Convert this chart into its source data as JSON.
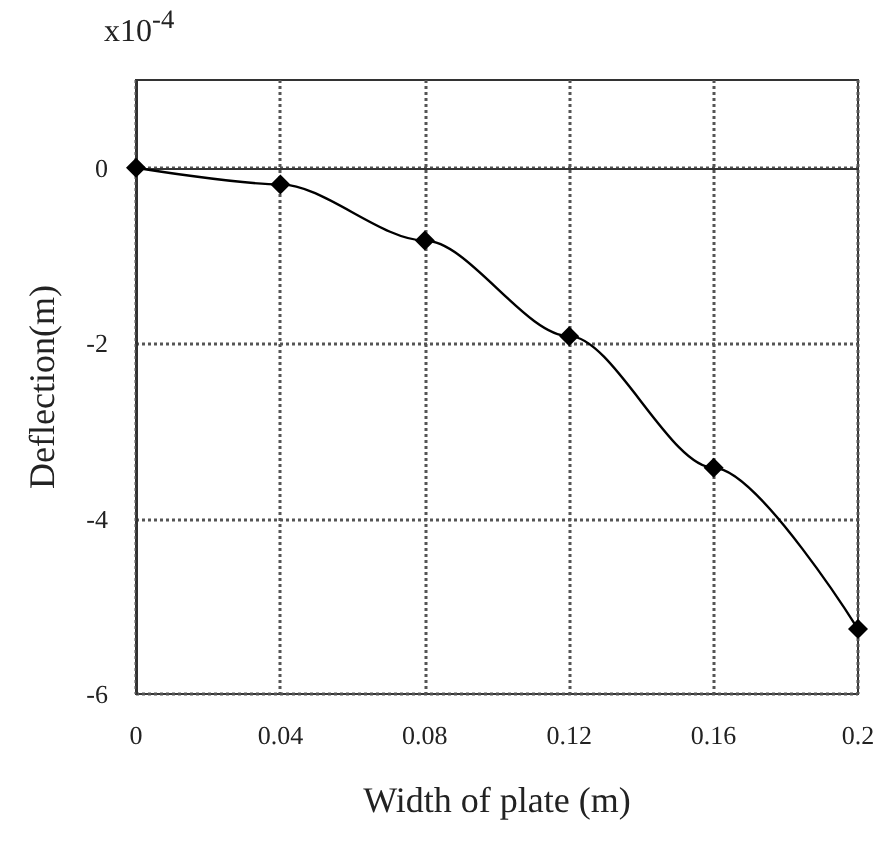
{
  "chart_data": {
    "type": "line",
    "xlabel": "Width of plate (m)",
    "ylabel": "Deflection(m)",
    "annotations": [
      "x10$^{-4}$"
    ],
    "x": [
      0,
      0.04,
      0.08,
      0.12,
      0.16,
      0.2
    ],
    "series": [
      {
        "color": "#000000",
        "values": [
          0,
          -0.19,
          -0.83,
          -1.92,
          -3.42,
          -5.26
        ]
      }
    ],
    "xlim": [
      0,
      0.2
    ],
    "xticks": [
      0,
      0.04,
      0.08,
      0.12,
      0.16,
      0.2
    ],
    "ylim": [
      -6,
      1
    ],
    "yticks": [
      -6,
      -4,
      -2,
      0
    ],
    "grid": true,
    "marker": "diamond",
    "line_style": "solid"
  }
}
